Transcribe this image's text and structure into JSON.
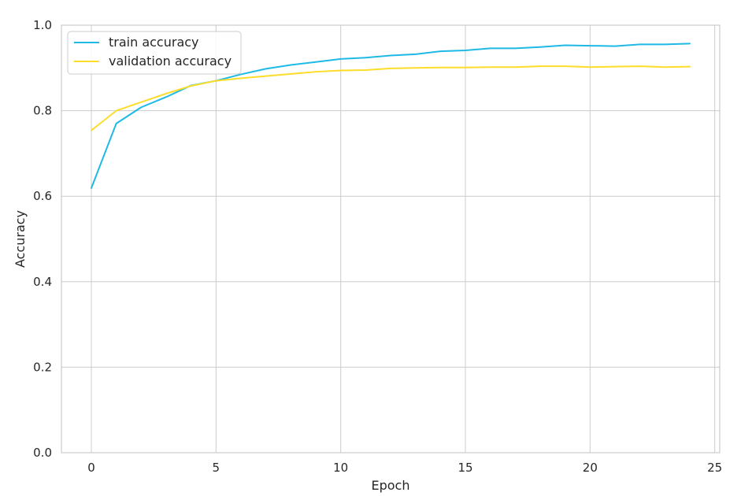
{
  "chart_data": {
    "type": "line",
    "title": "",
    "xlabel": "Epoch",
    "ylabel": "Accuracy",
    "xlim": [
      -1.2,
      25.2
    ],
    "ylim": [
      0.0,
      1.0
    ],
    "xticks": [
      0,
      5,
      10,
      15,
      20,
      25
    ],
    "yticks": [
      0.0,
      0.2,
      0.4,
      0.6,
      0.8,
      1.0
    ],
    "xtick_labels": [
      "0",
      "5",
      "10",
      "15",
      "20",
      "25"
    ],
    "ytick_labels": [
      "0.0",
      "0.2",
      "0.4",
      "0.6",
      "0.8",
      "1.0"
    ],
    "grid": true,
    "legend_position": "top-left",
    "x": [
      0,
      1,
      2,
      3,
      4,
      5,
      6,
      7,
      8,
      9,
      10,
      11,
      12,
      13,
      14,
      15,
      16,
      17,
      18,
      19,
      20,
      21,
      22,
      23,
      24
    ],
    "series": [
      {
        "name": "train accuracy",
        "color": "#1fb9e6",
        "values": [
          0.619,
          0.77,
          0.808,
          0.832,
          0.859,
          0.87,
          0.885,
          0.898,
          0.907,
          0.914,
          0.921,
          0.924,
          0.929,
          0.932,
          0.939,
          0.941,
          0.946,
          0.946,
          0.949,
          0.953,
          0.952,
          0.951,
          0.955,
          0.955,
          0.957
        ]
      },
      {
        "name": "validation accuracy",
        "color": "#fddc2a",
        "values": [
          0.754,
          0.8,
          0.82,
          0.84,
          0.858,
          0.87,
          0.876,
          0.881,
          0.886,
          0.891,
          0.894,
          0.895,
          0.899,
          0.9,
          0.901,
          0.901,
          0.902,
          0.902,
          0.904,
          0.904,
          0.902,
          0.903,
          0.904,
          0.902,
          0.903
        ]
      }
    ]
  }
}
